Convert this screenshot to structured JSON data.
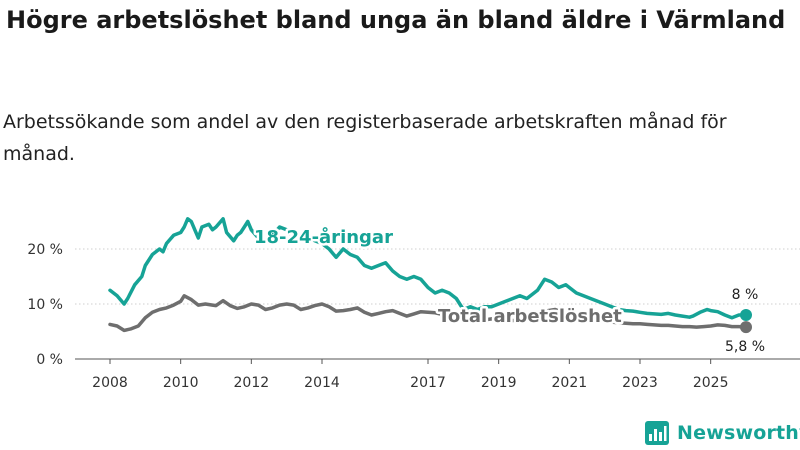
{
  "title": "Högre arbetslöshet bland unga än bland äldre i Värmland",
  "subtitle": "Arbetssökande som andel av den registerbaserade arbetskraften månad för månad.",
  "brand": {
    "name": "Newsworthy",
    "icon": "bar-chart-logo-icon",
    "color": "#16a396"
  },
  "chart_data": {
    "type": "line",
    "x_unit": "year",
    "xlim": [
      2008,
      2026.3
    ],
    "ylim": [
      0,
      25
    ],
    "y_ticks": [
      0,
      10,
      20
    ],
    "y_tick_labels": [
      "0 %",
      "10 %",
      "20 %"
    ],
    "x_ticks": [
      2008,
      2010,
      2012,
      2014,
      2017,
      2019,
      2021,
      2023,
      2025
    ],
    "x_tick_labels": [
      "2008",
      "2010",
      "2012",
      "2014",
      "2017",
      "2019",
      "2021",
      "2023",
      "2025"
    ],
    "grid": true,
    "series": [
      {
        "name": "18-24-åringar",
        "color": "#16a396",
        "end_label": "8 %",
        "x": [
          2008.0,
          2008.2,
          2008.4,
          2008.5,
          2008.7,
          2008.9,
          2009.0,
          2009.2,
          2009.4,
          2009.5,
          2009.6,
          2009.8,
          2010.0,
          2010.1,
          2010.2,
          2010.3,
          2010.4,
          2010.5,
          2010.6,
          2010.8,
          2010.9,
          2011.0,
          2011.2,
          2011.3,
          2011.5,
          2011.6,
          2011.7,
          2011.8,
          2011.9,
          2012.0,
          2012.2,
          2012.4,
          2012.6,
          2012.8,
          2013.0,
          2013.2,
          2013.4,
          2013.6,
          2013.8,
          2014.0,
          2014.2,
          2014.4,
          2014.6,
          2014.8,
          2015.0,
          2015.2,
          2015.4,
          2015.6,
          2015.8,
          2016.0,
          2016.2,
          2016.4,
          2016.6,
          2016.8,
          2017.0,
          2017.2,
          2017.4,
          2017.6,
          2017.8,
          2018.0,
          2018.2,
          2018.4,
          2018.6,
          2018.8,
          2019.0,
          2019.2,
          2019.4,
          2019.6,
          2019.8,
          2020.0,
          2020.1,
          2020.3,
          2020.5,
          2020.7,
          2020.9,
          2021.0,
          2021.2,
          2021.4,
          2021.6,
          2021.8,
          2022.0,
          2022.2,
          2022.4,
          2022.6,
          2022.8,
          2023.0,
          2023.2,
          2023.4,
          2023.6,
          2023.8,
          2024.0,
          2024.2,
          2024.4,
          2024.5,
          2024.7,
          2024.9,
          2025.0,
          2025.2,
          2025.4,
          2025.6,
          2025.8,
          2026.0
        ],
        "values": [
          12.5,
          11.5,
          10,
          11,
          13.5,
          15,
          17,
          19,
          20,
          19.5,
          21,
          22.5,
          23,
          24,
          25.5,
          25,
          23.5,
          22,
          24,
          24.5,
          23.5,
          24,
          25.5,
          23,
          21.5,
          22.5,
          23,
          24,
          25,
          23.5,
          22,
          21.5,
          22.5,
          24,
          23.5,
          22,
          22.5,
          22,
          21.5,
          21,
          20,
          18.5,
          20,
          19,
          18.5,
          17,
          16.5,
          17,
          17.5,
          16,
          15,
          14.5,
          15,
          14.5,
          13,
          12,
          12.5,
          12,
          11,
          9,
          9.5,
          9,
          9.5,
          9.5,
          10,
          10.5,
          11,
          11.5,
          11,
          12,
          12.5,
          14.5,
          14,
          13,
          13.5,
          13,
          12,
          11.5,
          11,
          10.5,
          10,
          9.5,
          9,
          8.8,
          8.7,
          8.5,
          8.3,
          8.2,
          8.1,
          8.3,
          8,
          7.8,
          7.6,
          7.8,
          8.5,
          9,
          8.8,
          8.6,
          8,
          7.5,
          8,
          8
        ]
      },
      {
        "name": "Total arbetslöshet",
        "color": "#6e6e6e",
        "end_label": "5,8 %",
        "x": [
          2008.0,
          2008.2,
          2008.4,
          2008.6,
          2008.8,
          2009.0,
          2009.2,
          2009.4,
          2009.6,
          2009.8,
          2010.0,
          2010.1,
          2010.3,
          2010.5,
          2010.7,
          2010.9,
          2011.0,
          2011.2,
          2011.4,
          2011.6,
          2011.8,
          2012.0,
          2012.2,
          2012.4,
          2012.6,
          2012.8,
          2013.0,
          2013.2,
          2013.4,
          2013.6,
          2013.8,
          2014.0,
          2014.2,
          2014.4,
          2014.6,
          2014.8,
          2015.0,
          2015.2,
          2015.4,
          2015.6,
          2015.8,
          2016.0,
          2016.2,
          2016.4,
          2016.6,
          2016.8,
          2017.0,
          2017.2,
          2017.4,
          2017.6,
          2017.8,
          2018.0,
          2018.2,
          2018.4,
          2018.6,
          2018.8,
          2019.0,
          2019.2,
          2019.4,
          2019.6,
          2019.8,
          2020.0,
          2020.2,
          2020.4,
          2020.6,
          2020.8,
          2021.0,
          2021.2,
          2021.4,
          2021.6,
          2021.8,
          2022.0,
          2022.2,
          2022.4,
          2022.6,
          2022.8,
          2023.0,
          2023.2,
          2023.4,
          2023.6,
          2023.8,
          2024.0,
          2024.2,
          2024.4,
          2024.6,
          2024.8,
          2025.0,
          2025.2,
          2025.4,
          2025.6,
          2025.8,
          2026.0
        ],
        "values": [
          6.3,
          6,
          5.2,
          5.5,
          6,
          7.5,
          8.5,
          9,
          9.3,
          9.8,
          10.5,
          11.5,
          10.8,
          9.8,
          10,
          9.8,
          9.7,
          10.6,
          9.7,
          9.2,
          9.5,
          10,
          9.8,
          9,
          9.3,
          9.8,
          10,
          9.8,
          9,
          9.3,
          9.7,
          10,
          9.5,
          8.7,
          8.8,
          9,
          9.3,
          8.5,
          8,
          8.3,
          8.6,
          8.8,
          8.3,
          7.8,
          8.2,
          8.6,
          8.5,
          8.4,
          8.1,
          8,
          7.8,
          7.4,
          7.3,
          7.2,
          7.1,
          7.3,
          7.4,
          7.2,
          7,
          7,
          7.1,
          7.3,
          8,
          8.8,
          9,
          8.5,
          8.2,
          7.8,
          7.5,
          7.2,
          7,
          6.8,
          6.7,
          6.6,
          6.5,
          6.4,
          6.4,
          6.3,
          6.2,
          6.1,
          6.1,
          6,
          5.9,
          5.9,
          5.8,
          5.9,
          6,
          6.2,
          6.1,
          5.9,
          5.9,
          5.8
        ]
      }
    ]
  }
}
